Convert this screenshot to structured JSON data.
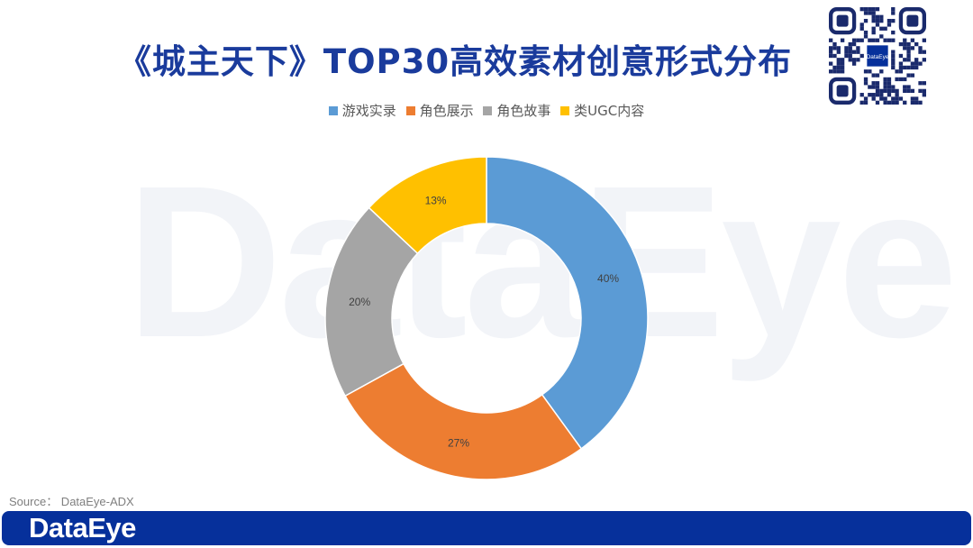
{
  "title": "《城主天下》TOP30高效素材创意形式分布",
  "watermark": "DataEye",
  "source": "Source：  DataEye-ADX",
  "footer_logo": "DataEye",
  "qr_label": "DataEye",
  "chart_data": {
    "type": "pie",
    "variant": "donut",
    "title": "",
    "legend_position": "top",
    "categories": [
      "游戏实录",
      "角色展示",
      "角色故事",
      "类UGC内容"
    ],
    "values": [
      40,
      27,
      20,
      13
    ],
    "labels": [
      "40%",
      "27%",
      "20%",
      "13%"
    ],
    "colors": [
      "#5b9bd5",
      "#ed7d31",
      "#a5a5a5",
      "#ffc000"
    ]
  }
}
